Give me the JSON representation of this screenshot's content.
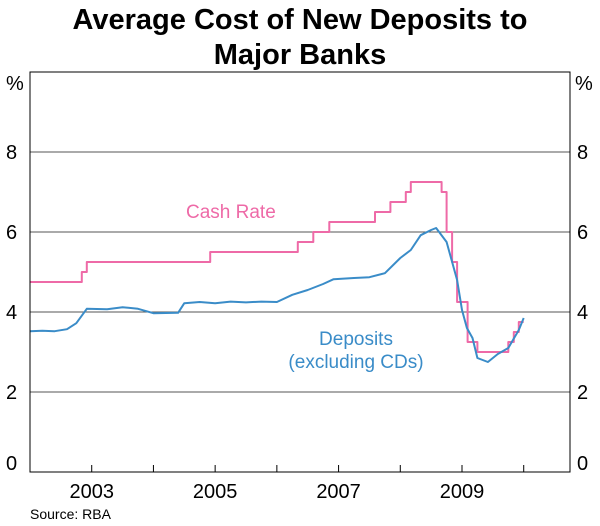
{
  "chart_data": {
    "type": "line",
    "title_lines": [
      "Average Cost of New Deposits to",
      "Major Banks"
    ],
    "y_unit_left": "%",
    "y_unit_right": "%",
    "ylim": [
      0,
      10
    ],
    "yticks": [
      "0",
      "2",
      "4",
      "6",
      "8"
    ],
    "x_range": [
      2002.0,
      2010.75
    ],
    "xticks": [
      {
        "label": "2003",
        "position": 2003.0
      },
      {
        "label": "2005",
        "position": 2005.0
      },
      {
        "label": "2007",
        "position": 2007.0
      },
      {
        "label": "2009",
        "position": 2009.0
      }
    ],
    "source": "Source: RBA",
    "series": [
      {
        "name": "Cash Rate",
        "label": "Cash Rate",
        "color": "#ee6aa7",
        "step": true,
        "points": [
          [
            2002.0,
            4.75
          ],
          [
            2002.84,
            5.0
          ],
          [
            2002.92,
            5.25
          ],
          [
            2004.92,
            5.5
          ],
          [
            2006.34,
            5.75
          ],
          [
            2006.59,
            6.0
          ],
          [
            2006.85,
            6.25
          ],
          [
            2007.59,
            6.5
          ],
          [
            2007.84,
            6.75
          ],
          [
            2008.09,
            7.0
          ],
          [
            2008.17,
            7.25
          ],
          [
            2008.67,
            7.0
          ],
          [
            2008.75,
            6.0
          ],
          [
            2008.84,
            5.25
          ],
          [
            2008.92,
            4.25
          ],
          [
            2009.09,
            3.25
          ],
          [
            2009.25,
            3.0
          ],
          [
            2009.75,
            3.25
          ],
          [
            2009.84,
            3.5
          ],
          [
            2009.92,
            3.75
          ],
          [
            2010.0,
            3.75
          ]
        ]
      },
      {
        "name": "Deposits (excluding CDs)",
        "label_lines": [
          "Deposits",
          "(excluding CDs)"
        ],
        "color": "#3a8cc8",
        "step": false,
        "points": [
          [
            2002.0,
            3.52
          ],
          [
            2002.2,
            3.53
          ],
          [
            2002.4,
            3.52
          ],
          [
            2002.6,
            3.57
          ],
          [
            2002.75,
            3.72
          ],
          [
            2002.92,
            4.08
          ],
          [
            2003.25,
            4.07
          ],
          [
            2003.5,
            4.12
          ],
          [
            2003.75,
            4.08
          ],
          [
            2004.0,
            3.97
          ],
          [
            2004.4,
            3.98
          ],
          [
            2004.5,
            4.22
          ],
          [
            2004.75,
            4.25
          ],
          [
            2005.0,
            4.22
          ],
          [
            2005.25,
            4.26
          ],
          [
            2005.5,
            4.24
          ],
          [
            2005.75,
            4.26
          ],
          [
            2006.0,
            4.25
          ],
          [
            2006.25,
            4.43
          ],
          [
            2006.5,
            4.55
          ],
          [
            2006.75,
            4.7
          ],
          [
            2006.92,
            4.82
          ],
          [
            2007.25,
            4.85
          ],
          [
            2007.5,
            4.87
          ],
          [
            2007.75,
            4.97
          ],
          [
            2008.0,
            5.35
          ],
          [
            2008.17,
            5.55
          ],
          [
            2008.33,
            5.92
          ],
          [
            2008.5,
            6.05
          ],
          [
            2008.58,
            6.1
          ],
          [
            2008.75,
            5.75
          ],
          [
            2008.92,
            4.8
          ],
          [
            2009.0,
            4.05
          ],
          [
            2009.08,
            3.6
          ],
          [
            2009.17,
            3.35
          ],
          [
            2009.25,
            2.85
          ],
          [
            2009.42,
            2.75
          ],
          [
            2009.58,
            2.95
          ],
          [
            2009.75,
            3.1
          ],
          [
            2009.92,
            3.55
          ],
          [
            2010.0,
            3.85
          ]
        ]
      }
    ]
  }
}
